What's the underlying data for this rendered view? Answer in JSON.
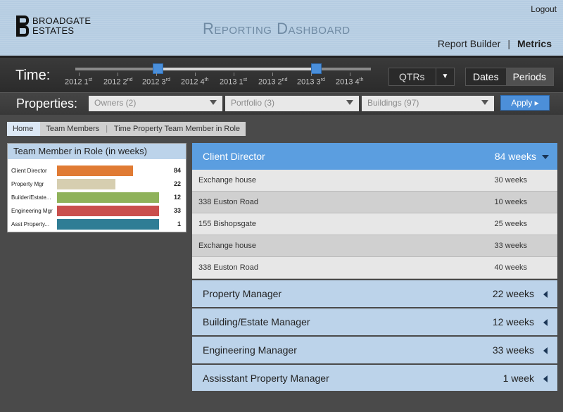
{
  "header": {
    "logo_line1": "BROADGATE",
    "logo_line2": "ESTATES",
    "title": "Reporting Dashboard",
    "logout": "Logout",
    "nav": {
      "report_builder": "Report Builder",
      "separator": "|",
      "metrics": "Metrics"
    }
  },
  "time": {
    "label": "Time:",
    "ticks": [
      {
        "year": "2012",
        "q": "1",
        "sup": "st"
      },
      {
        "year": "2012",
        "q": "2",
        "sup": "nd"
      },
      {
        "year": "2012",
        "q": "3",
        "sup": "rd"
      },
      {
        "year": "2012",
        "q": "4",
        "sup": "th"
      },
      {
        "year": "2013",
        "q": "1",
        "sup": "st"
      },
      {
        "year": "2013",
        "q": "2",
        "sup": "nd"
      },
      {
        "year": "2013",
        "q": "3",
        "sup": "rd"
      },
      {
        "year": "2013",
        "q": "4",
        "sup": "th"
      }
    ],
    "range_start": "2012 3rd",
    "range_end": "2013 3rd",
    "granularity": "QTRs",
    "toggle": {
      "dates": "Dates",
      "periods": "Periods"
    }
  },
  "properties": {
    "label": "Properties:",
    "owners": "Owners (2)",
    "portfolio": "Portfolio (3)",
    "buildings": "Buildings (97)",
    "apply": "Apply ▸"
  },
  "breadcrumb": {
    "home": "Home",
    "team_members": "Team Members",
    "separator": "|",
    "current": "Time Property Team Member in Role"
  },
  "summary": {
    "title": "Team Member in Role (in weeks)",
    "rows": [
      {
        "label": "Client Director",
        "value": "84",
        "color": "#e07b34",
        "fraction": 0.73
      },
      {
        "label": "Property Mgr",
        "value": "22",
        "color": "#d6ceb0",
        "fraction": 0.56
      },
      {
        "label": "Builder/Estate...",
        "value": "12",
        "color": "#8fb25a",
        "fraction": 0.98
      },
      {
        "label": "Engineering Mgr",
        "value": "33",
        "color": "#c94f4d",
        "fraction": 0.98
      },
      {
        "label": "Asst Property...",
        "value": "1",
        "color": "#2f7d95",
        "fraction": 0.98
      }
    ]
  },
  "detail": {
    "expanded": {
      "name": "Client Director",
      "value": "84 weeks",
      "rows": [
        {
          "name": "Exchange house",
          "value": "30 weeks"
        },
        {
          "name": "338 Euston Road",
          "value": "10 weeks"
        },
        {
          "name": "155 Bishopsgate",
          "value": "25 weeks"
        },
        {
          "name": "Exchange house",
          "value": "33 weeks"
        },
        {
          "name": "338 Euston Road",
          "value": "40 weeks"
        }
      ]
    },
    "collapsed": [
      {
        "name": "Property Manager",
        "value": "22 weeks"
      },
      {
        "name": "Building/Estate Manager",
        "value": "12 weeks"
      },
      {
        "name": "Engineering Manager",
        "value": "33 weeks"
      },
      {
        "name": "Assisstant Property Manager",
        "value": "1 week"
      }
    ]
  },
  "colors": {
    "accent": "#5b9ee0",
    "header_bg": "#b6cde2",
    "section_bg": "#bcd3ea"
  }
}
